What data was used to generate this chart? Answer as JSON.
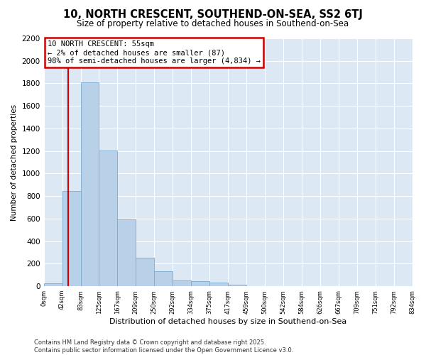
{
  "title": "10, NORTH CRESCENT, SOUTHEND-ON-SEA, SS2 6TJ",
  "subtitle": "Size of property relative to detached houses in Southend-on-Sea",
  "xlabel": "Distribution of detached houses by size in Southend-on-Sea",
  "ylabel": "Number of detached properties",
  "footnote1": "Contains HM Land Registry data © Crown copyright and database right 2025.",
  "footnote2": "Contains public sector information licensed under the Open Government Licence v3.0.",
  "bar_values": [
    25,
    845,
    1810,
    1205,
    595,
    255,
    135,
    48,
    42,
    30,
    12,
    0,
    0,
    0,
    0,
    0,
    0,
    0,
    0,
    0
  ],
  "bar_edges": [
    0,
    41.7,
    83.4,
    125.1,
    166.8,
    208.5,
    250.2,
    291.9,
    333.6,
    375.3,
    417.0,
    458.7,
    500.4,
    542.1,
    583.8,
    625.5,
    667.2,
    708.9,
    750.6,
    792.3,
    834.0
  ],
  "tick_labels": [
    "0sqm",
    "42sqm",
    "83sqm",
    "125sqm",
    "167sqm",
    "209sqm",
    "250sqm",
    "292sqm",
    "334sqm",
    "375sqm",
    "417sqm",
    "459sqm",
    "500sqm",
    "542sqm",
    "584sqm",
    "626sqm",
    "667sqm",
    "709sqm",
    "751sqm",
    "792sqm",
    "834sqm"
  ],
  "property_size": 55,
  "property_label": "10 NORTH CRESCENT: 55sqm",
  "annotation_line1": "← 2% of detached houses are smaller (87)",
  "annotation_line2": "98% of semi-detached houses are larger (4,834) →",
  "bar_color": "#b8d0e8",
  "bar_edge_color": "#7aaad0",
  "red_line_color": "#cc0000",
  "annotation_box_color": "#cc0000",
  "background_color": "#dce9f5",
  "grid_color": "#ffffff",
  "ylim": [
    0,
    2200
  ],
  "yticks": [
    0,
    200,
    400,
    600,
    800,
    1000,
    1200,
    1400,
    1600,
    1800,
    2000,
    2200
  ]
}
